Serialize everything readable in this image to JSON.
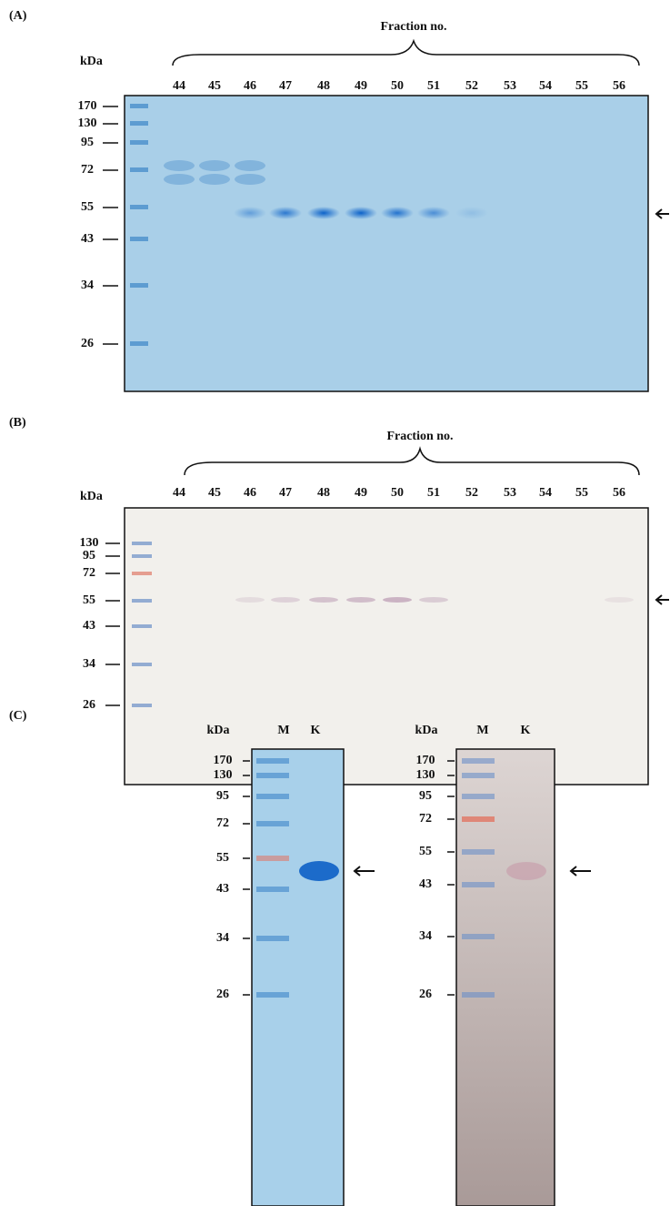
{
  "panels": [
    {
      "label": "(A)",
      "axis_label": "kDa",
      "group_label": "Fraction no.",
      "lanes": [
        "44",
        "45",
        "46",
        "47",
        "48",
        "49",
        "50",
        "51",
        "52",
        "53",
        "54",
        "55",
        "56"
      ],
      "markers": [
        "170",
        "130",
        "95",
        "72",
        "55",
        "43",
        "34",
        "26"
      ]
    },
    {
      "label": "(B)",
      "axis_label": "kDa",
      "group_label": "Fraction no.",
      "lanes": [
        "44",
        "45",
        "46",
        "47",
        "48",
        "49",
        "50",
        "51",
        "52",
        "53",
        "54",
        "55",
        "56"
      ],
      "markers": [
        "130",
        "95",
        "72",
        "55",
        "43",
        "34",
        "26"
      ]
    },
    {
      "label": "(C)",
      "blots": [
        {
          "axis_label": "kDa",
          "lanes": [
            "M",
            "K"
          ],
          "markers": [
            "170",
            "130",
            "95",
            "72",
            "55",
            "43",
            "34",
            "26"
          ]
        },
        {
          "axis_label": "kDa",
          "lanes": [
            "M",
            "K"
          ],
          "markers": [
            "170",
            "130",
            "95",
            "72",
            "55",
            "43",
            "34",
            "26"
          ]
        }
      ]
    }
  ]
}
